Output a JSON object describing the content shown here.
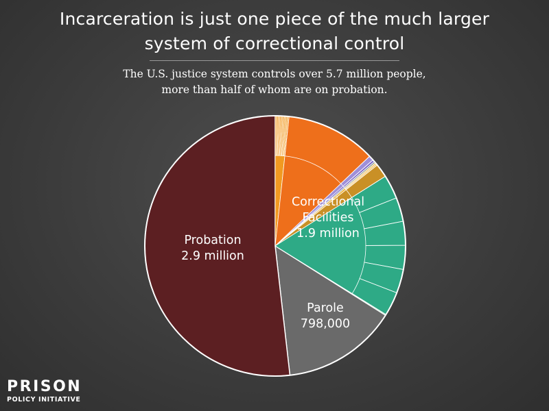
{
  "header": {
    "title_line1": "Incarceration is just one piece of the much larger",
    "title_line2": "system of correctional control",
    "subtitle_line1": "The U.S. justice system controls over 5.7 million people,",
    "subtitle_line2": "more than half of whom are on probation."
  },
  "logo": {
    "line1": "PRISON",
    "line2": "POLICY INITIATIVE"
  },
  "chart_data": {
    "type": "pie",
    "total_millions": 5.7,
    "slices": [
      {
        "name": "Correctional Facilities",
        "label_lines": [
          "Correctional",
          "Facilities",
          "1.9 million"
        ],
        "value": 1900000,
        "color": "#e9e9e9"
      },
      {
        "name": "Parole",
        "label_lines": [
          "Parole",
          "798,000"
        ],
        "value": 798000,
        "color": "#6a6a6a"
      },
      {
        "name": "Probation",
        "label_lines": [
          "Probation",
          "2.9 million"
        ],
        "value": 2900000,
        "color": "#5c1f22"
      }
    ],
    "sub_slices_correctional": [
      {
        "value": 5,
        "color": "#f19a21",
        "segments": 9
      },
      {
        "value": 33,
        "color": "#ee6f1b",
        "segments": 1
      },
      {
        "value": 1.8,
        "color": "#9f8fd8",
        "segments": 1
      },
      {
        "value": 0.8,
        "color": "#7d6bcb",
        "segments": 1
      },
      {
        "value": 0.6,
        "color": "#8f9a8f",
        "segments": 1
      },
      {
        "value": 1.0,
        "color": "#f0b43a",
        "segments": 2
      },
      {
        "value": 5,
        "color": "#c99026",
        "segments": 1
      },
      {
        "value": 52.5,
        "color": "#2eaa86",
        "segments": 6
      },
      {
        "value": 0.3,
        "color": "#58c48f",
        "segments": 1
      }
    ]
  }
}
